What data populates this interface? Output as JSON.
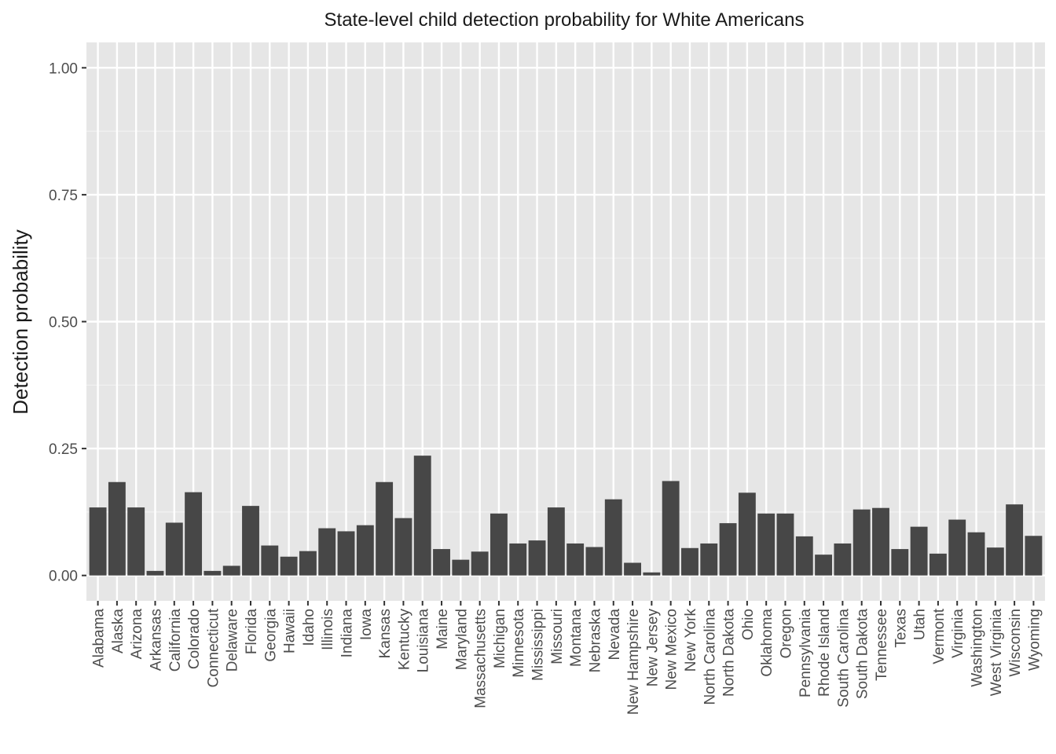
{
  "chart_data": {
    "type": "bar",
    "title": "State-level child detection probability for White Americans",
    "xlabel": "",
    "ylabel": "Detection probability",
    "ylim": [
      -0.05,
      1.05
    ],
    "yticks": [
      0.0,
      0.25,
      0.5,
      0.75,
      1.0
    ],
    "ytick_labels": [
      "0.00",
      "0.25",
      "0.50",
      "0.75",
      "1.00"
    ],
    "grid": true,
    "bar_color": "#474747",
    "panel_color": "#e6e6e6",
    "categories": [
      "Alabama",
      "Alaska",
      "Arizona",
      "Arkansas",
      "California",
      "Colorado",
      "Connecticut",
      "Delaware",
      "Florida",
      "Georgia",
      "Hawaii",
      "Idaho",
      "Illinois",
      "Indiana",
      "Iowa",
      "Kansas",
      "Kentucky",
      "Louisiana",
      "Maine",
      "Maryland",
      "Massachusetts",
      "Michigan",
      "Minnesota",
      "Mississippi",
      "Missouri",
      "Montana",
      "Nebraska",
      "Nevada",
      "New Hampshire",
      "New Jersey",
      "New Mexico",
      "New York",
      "North Carolina",
      "North Dakota",
      "Ohio",
      "Oklahoma",
      "Oregon",
      "Pennsylvania",
      "Rhode Island",
      "South Carolina",
      "South Dakota",
      "Tennessee",
      "Texas",
      "Utah",
      "Vermont",
      "Virginia",
      "Washington",
      "West Virginia",
      "Wisconsin",
      "Wyoming"
    ],
    "values": [
      0.134,
      0.184,
      0.134,
      0.009,
      0.104,
      0.164,
      0.009,
      0.019,
      0.137,
      0.059,
      0.037,
      0.048,
      0.093,
      0.087,
      0.099,
      0.184,
      0.113,
      0.236,
      0.052,
      0.031,
      0.047,
      0.122,
      0.063,
      0.069,
      0.134,
      0.063,
      0.056,
      0.15,
      0.025,
      0.006,
      0.186,
      0.054,
      0.063,
      0.103,
      0.163,
      0.122,
      0.122,
      0.077,
      0.041,
      0.063,
      0.13,
      0.133,
      0.052,
      0.096,
      0.043,
      0.11,
      0.085,
      0.055,
      0.14,
      0.078
    ]
  }
}
